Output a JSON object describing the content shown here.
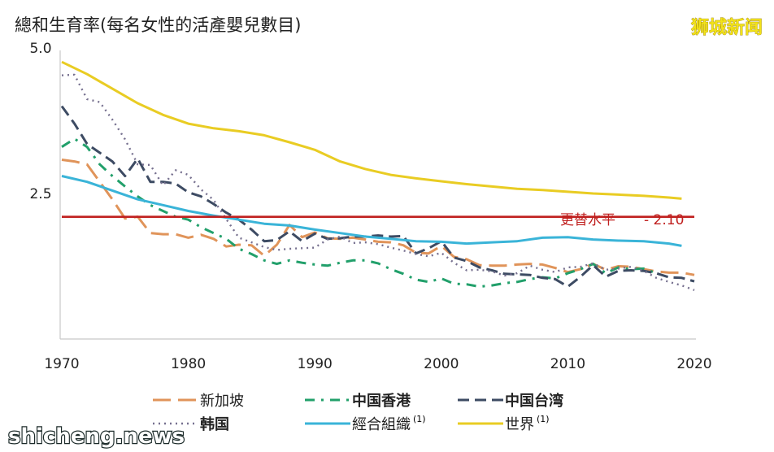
{
  "watermark_top": "狮城新闻",
  "watermark_bottom": "shicheng.news",
  "chart_data": {
    "type": "line",
    "ylabel": "總和生育率(每名女性的活產嬰兒數目)",
    "xlabel": "",
    "xlim": [
      1970,
      2020
    ],
    "ylim": [
      0,
      5.0
    ],
    "x_ticks": [
      "1970",
      "1980",
      "1990",
      "2000",
      "2010",
      "2020"
    ],
    "y_ticks": [
      "2.5",
      "5.0"
    ],
    "y_tick_values": [
      2.5,
      5.0
    ],
    "grid": false,
    "legend_position": "bottom",
    "reference_line": {
      "value": 2.1,
      "label": "更替水平",
      "value_label": "- 2.10",
      "color": "#c0201f"
    },
    "series": [
      {
        "name": "新加坡",
        "label_suffix": "",
        "bold": false,
        "color": "#e0945a",
        "dash": "22,9",
        "points": [
          [
            1970,
            3.08
          ],
          [
            1971,
            3.05
          ],
          [
            1972,
            3.0
          ],
          [
            1973,
            2.7
          ],
          [
            1974,
            2.4
          ],
          [
            1975,
            2.07
          ],
          [
            1976,
            2.1
          ],
          [
            1977,
            1.82
          ],
          [
            1978,
            1.8
          ],
          [
            1979,
            1.8
          ],
          [
            1980,
            1.74
          ],
          [
            1981,
            1.79
          ],
          [
            1982,
            1.72
          ],
          [
            1983,
            1.59
          ],
          [
            1984,
            1.62
          ],
          [
            1985,
            1.61
          ],
          [
            1986,
            1.43
          ],
          [
            1987,
            1.62
          ],
          [
            1988,
            1.96
          ],
          [
            1989,
            1.75
          ],
          [
            1990,
            1.83
          ],
          [
            1991,
            1.73
          ],
          [
            1992,
            1.72
          ],
          [
            1993,
            1.74
          ],
          [
            1994,
            1.71
          ],
          [
            1995,
            1.67
          ],
          [
            1996,
            1.66
          ],
          [
            1997,
            1.61
          ],
          [
            1998,
            1.48
          ],
          [
            1999,
            1.47
          ],
          [
            2000,
            1.6
          ],
          [
            2001,
            1.41
          ],
          [
            2002,
            1.37
          ],
          [
            2003,
            1.27
          ],
          [
            2004,
            1.26
          ],
          [
            2005,
            1.26
          ],
          [
            2006,
            1.28
          ],
          [
            2007,
            1.29
          ],
          [
            2008,
            1.28
          ],
          [
            2009,
            1.22
          ],
          [
            2010,
            1.15
          ],
          [
            2011,
            1.2
          ],
          [
            2012,
            1.29
          ],
          [
            2013,
            1.19
          ],
          [
            2014,
            1.25
          ],
          [
            2015,
            1.24
          ],
          [
            2016,
            1.2
          ],
          [
            2017,
            1.16
          ],
          [
            2018,
            1.14
          ],
          [
            2019,
            1.14
          ],
          [
            2020,
            1.1
          ]
        ]
      },
      {
        "name": "中国香港",
        "label_suffix": "",
        "bold": true,
        "color": "#22a06b",
        "dash": "12,8,3,8",
        "points": [
          [
            1970,
            3.3
          ],
          [
            1971,
            3.44
          ],
          [
            1972,
            3.3
          ],
          [
            1973,
            3.0
          ],
          [
            1974,
            2.8
          ],
          [
            1975,
            2.62
          ],
          [
            1976,
            2.45
          ],
          [
            1977,
            2.3
          ],
          [
            1978,
            2.2
          ],
          [
            1979,
            2.1
          ],
          [
            1980,
            2.05
          ],
          [
            1981,
            1.92
          ],
          [
            1982,
            1.82
          ],
          [
            1983,
            1.72
          ],
          [
            1984,
            1.55
          ],
          [
            1985,
            1.46
          ],
          [
            1986,
            1.35
          ],
          [
            1987,
            1.29
          ],
          [
            1988,
            1.35
          ],
          [
            1989,
            1.31
          ],
          [
            1990,
            1.28
          ],
          [
            1991,
            1.26
          ],
          [
            1992,
            1.31
          ],
          [
            1993,
            1.35
          ],
          [
            1994,
            1.35
          ],
          [
            1995,
            1.3
          ],
          [
            1996,
            1.2
          ],
          [
            1997,
            1.12
          ],
          [
            1998,
            1.02
          ],
          [
            1999,
            0.98
          ],
          [
            2000,
            1.04
          ],
          [
            2001,
            0.95
          ],
          [
            2002,
            0.94
          ],
          [
            2003,
            0.9
          ],
          [
            2004,
            0.92
          ],
          [
            2005,
            0.96
          ],
          [
            2006,
            0.98
          ],
          [
            2007,
            1.03
          ],
          [
            2008,
            1.06
          ],
          [
            2009,
            1.04
          ],
          [
            2010,
            1.13
          ],
          [
            2011,
            1.2
          ],
          [
            2012,
            1.29
          ],
          [
            2013,
            1.13
          ],
          [
            2014,
            1.23
          ],
          [
            2015,
            1.2
          ],
          [
            2016,
            1.21
          ],
          [
            2017,
            1.13
          ]
        ]
      },
      {
        "name": "中国台湾",
        "label_suffix": "",
        "bold": true,
        "color": "#3d4b63",
        "dash": "14,7",
        "points": [
          [
            1970,
            4.0
          ],
          [
            1971,
            3.7
          ],
          [
            1972,
            3.35
          ],
          [
            1973,
            3.2
          ],
          [
            1974,
            3.05
          ],
          [
            1975,
            2.8
          ],
          [
            1976,
            3.1
          ],
          [
            1977,
            2.7
          ],
          [
            1978,
            2.7
          ],
          [
            1979,
            2.67
          ],
          [
            1980,
            2.52
          ],
          [
            1981,
            2.45
          ],
          [
            1982,
            2.32
          ],
          [
            1983,
            2.17
          ],
          [
            1984,
            2.05
          ],
          [
            1985,
            1.88
          ],
          [
            1986,
            1.68
          ],
          [
            1987,
            1.7
          ],
          [
            1988,
            1.85
          ],
          [
            1989,
            1.68
          ],
          [
            1990,
            1.81
          ],
          [
            1991,
            1.72
          ],
          [
            1992,
            1.73
          ],
          [
            1993,
            1.76
          ],
          [
            1994,
            1.76
          ],
          [
            1995,
            1.78
          ],
          [
            1996,
            1.76
          ],
          [
            1997,
            1.77
          ],
          [
            1998,
            1.47
          ],
          [
            1999,
            1.56
          ],
          [
            2000,
            1.68
          ],
          [
            2001,
            1.4
          ],
          [
            2002,
            1.34
          ],
          [
            2003,
            1.23
          ],
          [
            2004,
            1.18
          ],
          [
            2005,
            1.12
          ],
          [
            2006,
            1.11
          ],
          [
            2007,
            1.1
          ],
          [
            2008,
            1.05
          ],
          [
            2009,
            1.03
          ],
          [
            2010,
            0.9
          ],
          [
            2011,
            1.07
          ],
          [
            2012,
            1.27
          ],
          [
            2013,
            1.07
          ],
          [
            2014,
            1.17
          ],
          [
            2015,
            1.18
          ],
          [
            2016,
            1.17
          ],
          [
            2017,
            1.13
          ],
          [
            2018,
            1.06
          ],
          [
            2019,
            1.05
          ],
          [
            2020,
            0.99
          ]
        ]
      },
      {
        "name": "韩国",
        "label_suffix": "",
        "bold": true,
        "color": "#76708f",
        "dash": "2,5",
        "points": [
          [
            1970,
            4.53
          ],
          [
            1971,
            4.54
          ],
          [
            1972,
            4.12
          ],
          [
            1973,
            4.07
          ],
          [
            1974,
            3.77
          ],
          [
            1975,
            3.43
          ],
          [
            1976,
            3.0
          ],
          [
            1977,
            2.99
          ],
          [
            1978,
            2.64
          ],
          [
            1979,
            2.9
          ],
          [
            1980,
            2.82
          ],
          [
            1981,
            2.57
          ],
          [
            1982,
            2.39
          ],
          [
            1983,
            2.06
          ],
          [
            1984,
            1.74
          ],
          [
            1985,
            1.66
          ],
          [
            1986,
            1.58
          ],
          [
            1987,
            1.53
          ],
          [
            1988,
            1.55
          ],
          [
            1989,
            1.56
          ],
          [
            1990,
            1.57
          ],
          [
            1991,
            1.71
          ],
          [
            1992,
            1.76
          ],
          [
            1993,
            1.65
          ],
          [
            1994,
            1.66
          ],
          [
            1995,
            1.63
          ],
          [
            1996,
            1.57
          ],
          [
            1997,
            1.52
          ],
          [
            1998,
            1.46
          ],
          [
            1999,
            1.42
          ],
          [
            2000,
            1.48
          ],
          [
            2001,
            1.31
          ],
          [
            2002,
            1.18
          ],
          [
            2003,
            1.19
          ],
          [
            2004,
            1.16
          ],
          [
            2005,
            1.09
          ],
          [
            2006,
            1.13
          ],
          [
            2007,
            1.26
          ],
          [
            2008,
            1.19
          ],
          [
            2009,
            1.15
          ],
          [
            2010,
            1.23
          ],
          [
            2011,
            1.24
          ],
          [
            2012,
            1.3
          ],
          [
            2013,
            1.19
          ],
          [
            2014,
            1.21
          ],
          [
            2015,
            1.24
          ],
          [
            2016,
            1.17
          ],
          [
            2017,
            1.05
          ],
          [
            2018,
            0.98
          ],
          [
            2019,
            0.92
          ],
          [
            2020,
            0.84
          ]
        ]
      },
      {
        "name": "經合組織",
        "label_suffix": "(1)",
        "bold": false,
        "color": "#3ab4d8",
        "dash": "",
        "points": [
          [
            1970,
            2.8
          ],
          [
            1972,
            2.7
          ],
          [
            1974,
            2.55
          ],
          [
            1976,
            2.4
          ],
          [
            1978,
            2.3
          ],
          [
            1980,
            2.2
          ],
          [
            1982,
            2.12
          ],
          [
            1984,
            2.05
          ],
          [
            1986,
            1.98
          ],
          [
            1988,
            1.95
          ],
          [
            1990,
            1.88
          ],
          [
            1992,
            1.82
          ],
          [
            1994,
            1.76
          ],
          [
            1996,
            1.72
          ],
          [
            1998,
            1.68
          ],
          [
            2000,
            1.67
          ],
          [
            2002,
            1.64
          ],
          [
            2004,
            1.66
          ],
          [
            2006,
            1.68
          ],
          [
            2008,
            1.74
          ],
          [
            2010,
            1.75
          ],
          [
            2012,
            1.71
          ],
          [
            2014,
            1.69
          ],
          [
            2016,
            1.68
          ],
          [
            2018,
            1.64
          ],
          [
            2019,
            1.6
          ]
        ]
      },
      {
        "name": "世界",
        "label_suffix": "(1)",
        "bold": false,
        "color": "#e9cc23",
        "dash": "",
        "points": [
          [
            1970,
            4.76
          ],
          [
            1972,
            4.55
          ],
          [
            1974,
            4.3
          ],
          [
            1976,
            4.05
          ],
          [
            1978,
            3.85
          ],
          [
            1980,
            3.7
          ],
          [
            1982,
            3.62
          ],
          [
            1984,
            3.57
          ],
          [
            1986,
            3.5
          ],
          [
            1988,
            3.38
          ],
          [
            1990,
            3.25
          ],
          [
            1992,
            3.05
          ],
          [
            1994,
            2.92
          ],
          [
            1996,
            2.82
          ],
          [
            1998,
            2.76
          ],
          [
            2000,
            2.71
          ],
          [
            2002,
            2.66
          ],
          [
            2004,
            2.62
          ],
          [
            2006,
            2.58
          ],
          [
            2008,
            2.56
          ],
          [
            2010,
            2.53
          ],
          [
            2012,
            2.5
          ],
          [
            2014,
            2.48
          ],
          [
            2016,
            2.46
          ],
          [
            2018,
            2.43
          ],
          [
            2019,
            2.41
          ]
        ]
      }
    ]
  }
}
